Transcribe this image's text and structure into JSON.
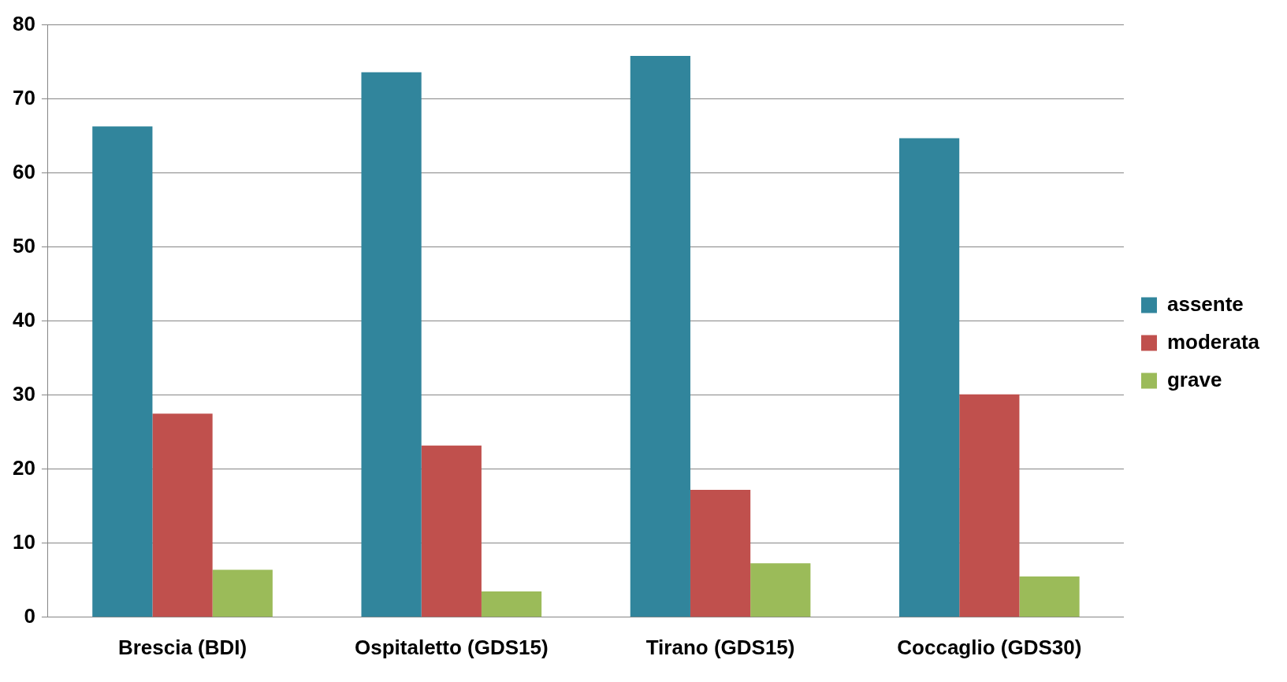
{
  "chart_data": {
    "type": "bar",
    "categories": [
      "Brescia (BDI)",
      "Ospitaletto (GDS15)",
      "Tirano (GDS15)",
      "Coccaglio (GDS30)"
    ],
    "series": [
      {
        "name": "assente",
        "color": "#31859c",
        "values": [
          66.3,
          73.6,
          75.8,
          64.7
        ]
      },
      {
        "name": "moderata",
        "color": "#c0504d",
        "values": [
          27.5,
          23.2,
          17.2,
          30.1
        ]
      },
      {
        "name": "grave",
        "color": "#9bbb59",
        "values": [
          6.4,
          3.5,
          7.3,
          5.5
        ]
      }
    ],
    "ylim": [
      0,
      80
    ],
    "yticks": [
      0,
      10,
      20,
      30,
      40,
      50,
      60,
      70,
      80
    ],
    "grid": "y",
    "legend": "right"
  }
}
